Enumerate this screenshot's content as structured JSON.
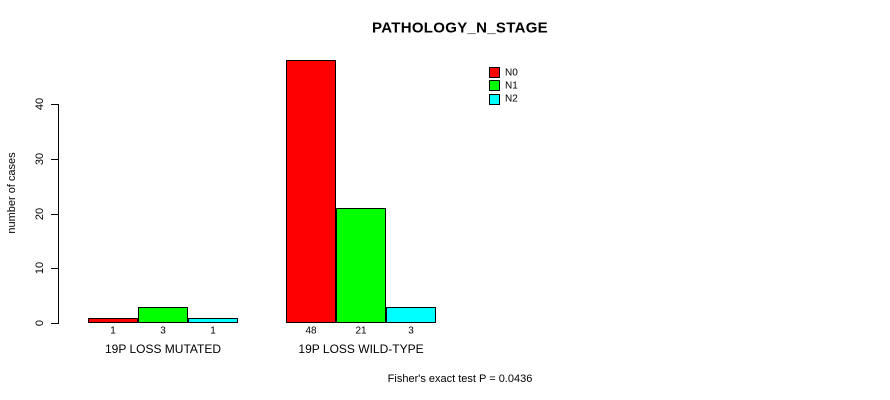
{
  "chart_data": {
    "type": "bar",
    "title": "PATHOLOGY_N_STAGE",
    "xlabel": "",
    "ylabel": "number of cases",
    "categories": [
      "19P LOSS MUTATED",
      "19P LOSS WILD-TYPE"
    ],
    "series": [
      {
        "name": "N0",
        "color": "#ff0000",
        "values": [
          1,
          48
        ]
      },
      {
        "name": "N1",
        "color": "#00ff00",
        "values": [
          3,
          21
        ]
      },
      {
        "name": "N2",
        "color": "#00ffff",
        "values": [
          1,
          3
        ]
      }
    ],
    "bar_value_labels": [
      [
        "1",
        "3",
        "1"
      ],
      [
        "48",
        "21",
        "3"
      ]
    ],
    "ylim": [
      0,
      48
    ],
    "yticks": [
      0,
      10,
      20,
      30,
      40
    ],
    "grid": false,
    "legend_position": "top-right",
    "annotation": "Fisher's exact test P = 0.0436"
  }
}
